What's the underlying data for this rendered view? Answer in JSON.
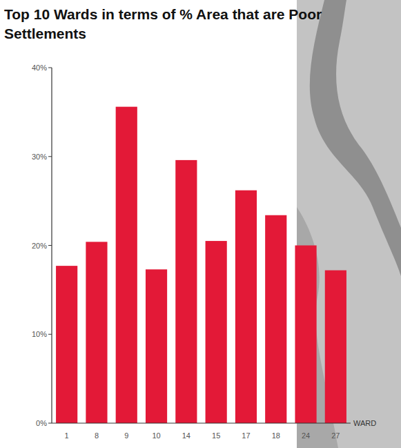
{
  "chart_data": {
    "type": "bar",
    "title": "Top 10 Wards in terms of % Area that are Poor Settlements",
    "x_label": "WARD",
    "categories": [
      "1",
      "8",
      "9",
      "10",
      "14",
      "15",
      "17",
      "18",
      "24",
      "27"
    ],
    "values": [
      17.7,
      20.4,
      35.6,
      17.3,
      29.6,
      20.5,
      26.2,
      23.4,
      20.0,
      17.2
    ],
    "color": "#e31937",
    "ylim": [
      0,
      40
    ],
    "yticks": [
      {
        "value": 0,
        "label": "0%"
      },
      {
        "value": 10,
        "label": "10%"
      },
      {
        "value": 20,
        "label": "20%"
      },
      {
        "value": 30,
        "label": "30%"
      },
      {
        "value": 40,
        "label": "40%"
      }
    ],
    "grid": false
  }
}
